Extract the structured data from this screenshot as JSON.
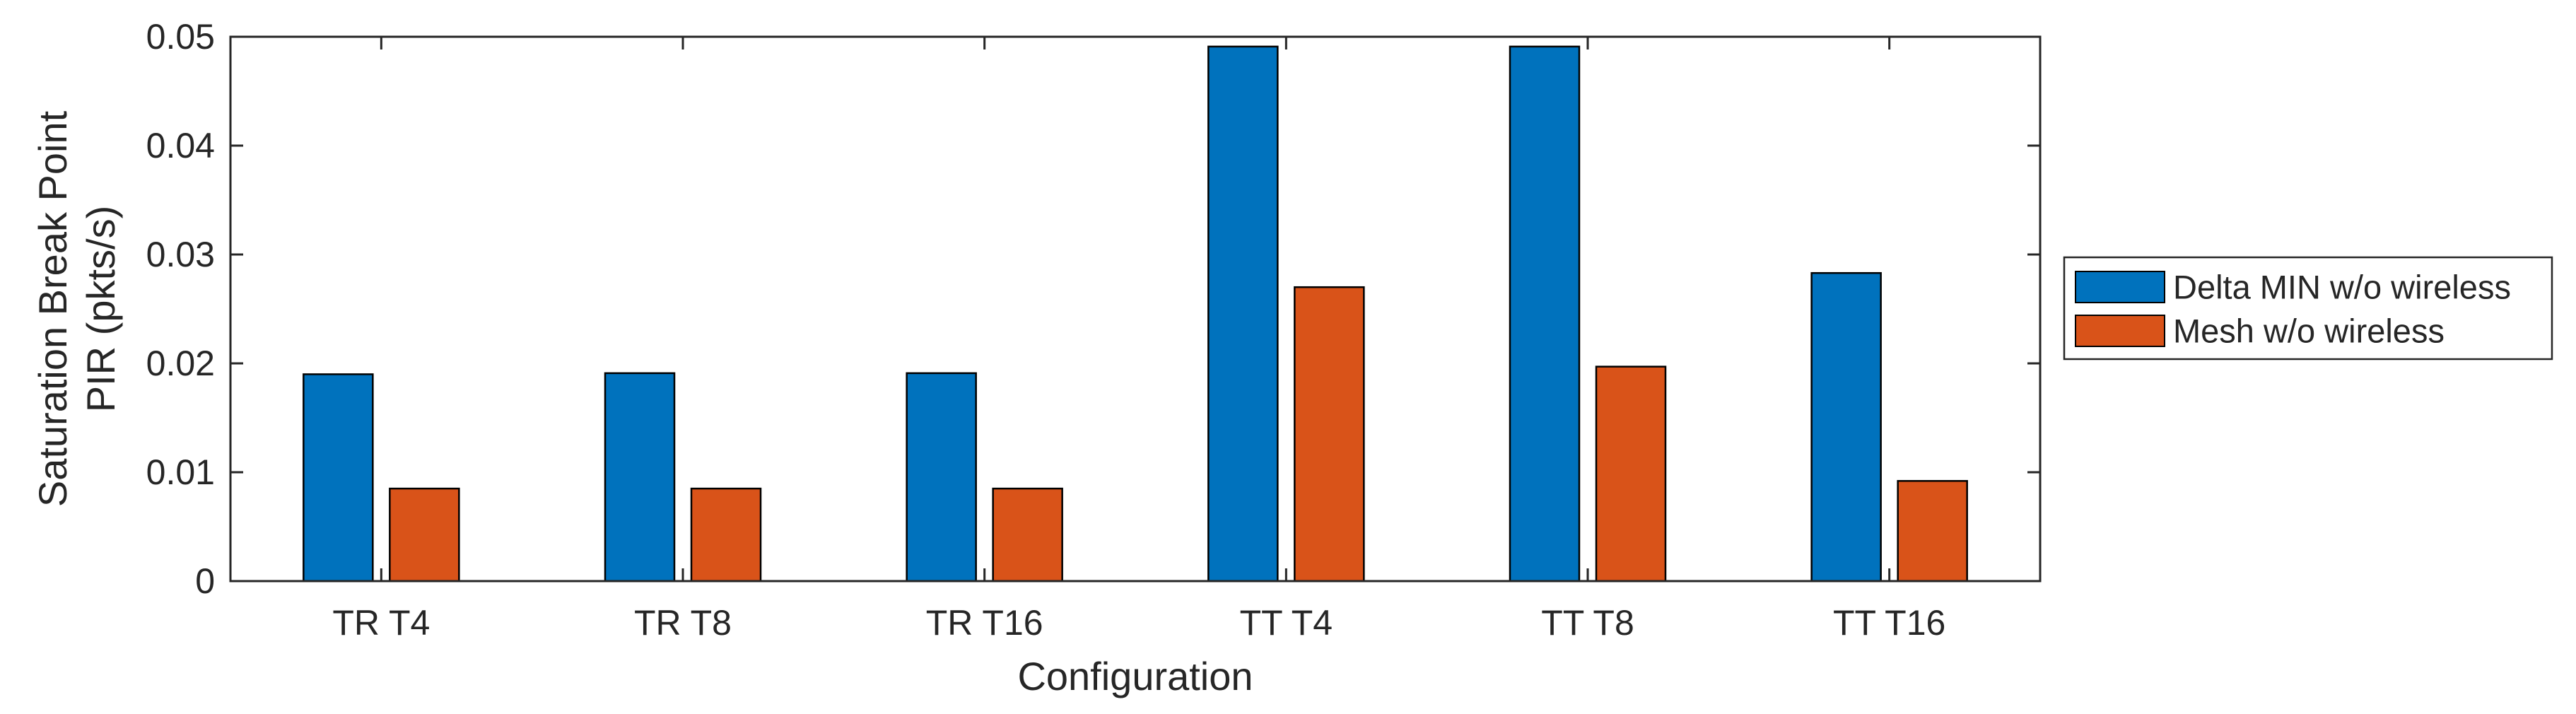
{
  "chart_data": {
    "type": "bar",
    "title": "",
    "xlabel": "Configuration",
    "ylabel_lines": [
      "Saturation Break Point",
      "PIR (pkts/s)"
    ],
    "categories": [
      "TR T4",
      "TR T8",
      "TR T16",
      "TT T4",
      "TT T8",
      "TT T16"
    ],
    "ylim": [
      0,
      0.05
    ],
    "yticks": [
      0,
      0.01,
      0.02,
      0.03,
      0.04,
      0.05
    ],
    "ytick_labels": [
      "0",
      "0.01",
      "0.02",
      "0.03",
      "0.04",
      "0.05"
    ],
    "grid": false,
    "legend_position": "right",
    "series": [
      {
        "name": "Delta MIN w/o wireless",
        "color": "#0072BD",
        "values": [
          0.019,
          0.0191,
          0.0191,
          0.0491,
          0.0491,
          0.0283
        ]
      },
      {
        "name": "Mesh w/o wireless",
        "color": "#D95319",
        "values": [
          0.0085,
          0.0085,
          0.0085,
          0.027,
          0.0197,
          0.0092
        ]
      }
    ]
  }
}
